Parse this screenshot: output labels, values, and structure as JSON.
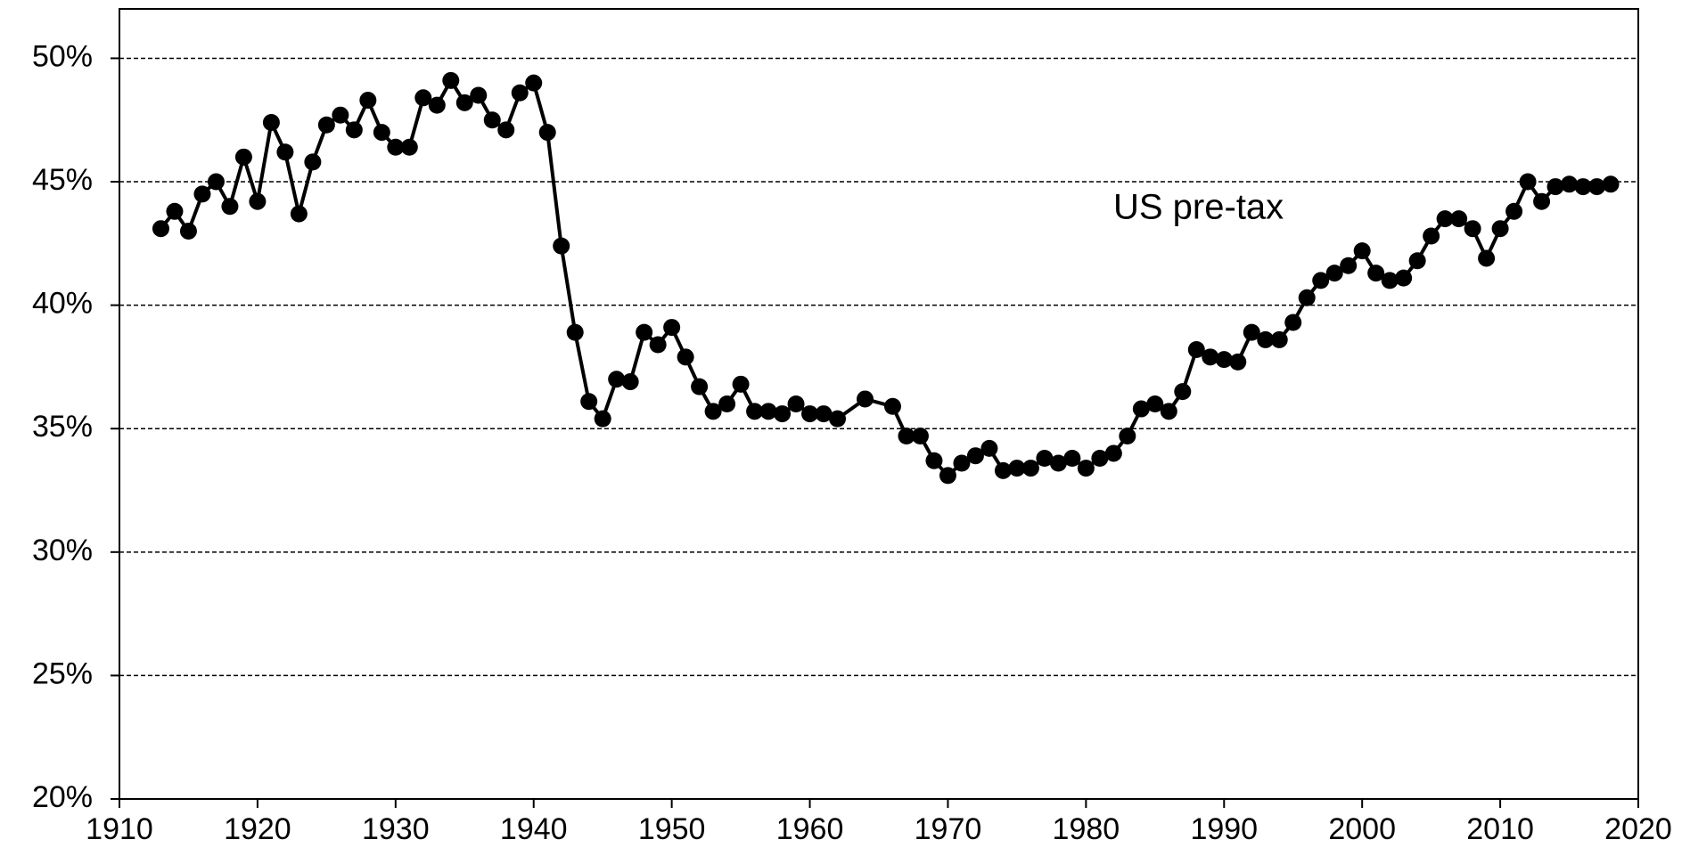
{
  "chart_data": {
    "type": "line",
    "annotation": "US pre-tax",
    "x": [
      1913,
      1914,
      1915,
      1916,
      1917,
      1918,
      1919,
      1920,
      1921,
      1922,
      1923,
      1924,
      1925,
      1926,
      1927,
      1928,
      1929,
      1930,
      1931,
      1932,
      1933,
      1934,
      1935,
      1936,
      1937,
      1938,
      1939,
      1940,
      1941,
      1942,
      1943,
      1944,
      1945,
      1946,
      1947,
      1948,
      1949,
      1950,
      1951,
      1952,
      1953,
      1954,
      1955,
      1956,
      1957,
      1958,
      1959,
      1960,
      1961,
      1962,
      1964,
      1966,
      1967,
      1968,
      1969,
      1970,
      1971,
      1972,
      1973,
      1974,
      1975,
      1976,
      1977,
      1978,
      1979,
      1980,
      1981,
      1982,
      1983,
      1984,
      1985,
      1986,
      1987,
      1988,
      1989,
      1990,
      1991,
      1992,
      1993,
      1994,
      1995,
      1996,
      1997,
      1998,
      1999,
      2000,
      2001,
      2002,
      2003,
      2004,
      2005,
      2006,
      2007,
      2008,
      2009,
      2010,
      2011,
      2012,
      2013,
      2014,
      2015,
      2016,
      2017,
      2018
    ],
    "series": [
      {
        "color": "#000000",
        "values": [
          43.1,
          43.8,
          43.0,
          44.5,
          45.0,
          44.0,
          46.0,
          44.2,
          47.4,
          46.2,
          43.7,
          45.8,
          47.3,
          47.7,
          47.1,
          48.3,
          47.0,
          46.4,
          46.4,
          48.4,
          48.1,
          49.1,
          48.2,
          48.5,
          47.5,
          47.1,
          48.6,
          49.0,
          47.0,
          42.4,
          38.9,
          36.1,
          35.4,
          37.0,
          36.9,
          38.9,
          38.4,
          39.1,
          37.9,
          36.7,
          35.7,
          36.0,
          36.8,
          35.7,
          35.7,
          35.6,
          36.0,
          35.6,
          35.6,
          35.4,
          36.2,
          35.9,
          34.7,
          34.7,
          33.7,
          33.1,
          33.6,
          33.9,
          34.2,
          33.3,
          33.4,
          33.4,
          33.8,
          33.6,
          33.8,
          33.4,
          33.8,
          34.0,
          34.7,
          35.8,
          36.0,
          35.7,
          36.5,
          38.2,
          37.9,
          37.8,
          37.7,
          38.9,
          38.6,
          38.6,
          39.3,
          40.3,
          41.0,
          41.3,
          41.6,
          42.2,
          41.3,
          41.0,
          41.1,
          41.8,
          42.8,
          43.5,
          43.5,
          43.1,
          41.9,
          43.1,
          43.8,
          45.0,
          44.2,
          44.8,
          44.9,
          44.8,
          44.8,
          44.9
        ]
      }
    ],
    "xlim": [
      1910,
      2020
    ],
    "xticks": [
      1910,
      1920,
      1930,
      1940,
      1950,
      1960,
      1970,
      1980,
      1990,
      2000,
      2010,
      2020
    ],
    "ylim": [
      20,
      52
    ],
    "yticks": [
      {
        "value": 20,
        "label": "20%"
      },
      {
        "value": 25,
        "label": "25%"
      },
      {
        "value": 30,
        "label": "30%"
      },
      {
        "value": 35,
        "label": "35%"
      },
      {
        "value": 40,
        "label": "40%"
      },
      {
        "value": 45,
        "label": "45%"
      },
      {
        "value": 50,
        "label": "50%"
      }
    ],
    "grid": true
  }
}
